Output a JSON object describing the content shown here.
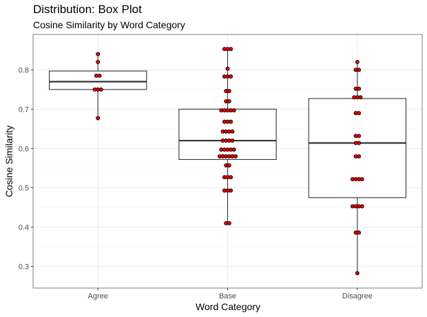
{
  "chart_data": {
    "type": "box",
    "title": "Distribution: Box Plot",
    "subtitle": "Cosine Similarity by Word Category",
    "xlabel": "Word Category",
    "ylabel": "Cosine Similarity",
    "ylim": [
      0.245,
      0.89
    ],
    "yticks": [
      0.3,
      0.4,
      0.5,
      0.6,
      0.7,
      0.8
    ],
    "ytick_labels": [
      "0.3",
      "0.4",
      "0.5",
      "0.6",
      "0.7",
      "0.8"
    ],
    "categories": [
      "Agree",
      "Base",
      "Disagree"
    ],
    "grid": true,
    "legend": "none",
    "colors": {
      "point_fill": "#e00000",
      "point_stroke": "#000000",
      "box_stroke": "#333333",
      "grid": "#ebebeb",
      "panel_border": "#7f7f7f"
    },
    "boxes": [
      {
        "category": "Agree",
        "whisker_low": 0.677,
        "q1": 0.75,
        "median": 0.77,
        "q3": 0.797,
        "whisker_high": 0.84
      },
      {
        "category": "Base",
        "whisker_low": 0.41,
        "q1": 0.572,
        "median": 0.62,
        "q3": 0.7,
        "whisker_high": 0.853
      },
      {
        "category": "Disagree",
        "whisker_low": 0.283,
        "q1": 0.475,
        "median": 0.614,
        "q3": 0.727,
        "whisker_high": 0.82
      }
    ],
    "points": [
      {
        "category": "Agree",
        "values": [
          0.84,
          0.82,
          0.785,
          0.785,
          0.75,
          0.75,
          0.75,
          0.677
        ]
      },
      {
        "category": "Base",
        "values": [
          0.853,
          0.853,
          0.853,
          0.803,
          0.783,
          0.783,
          0.783,
          0.746,
          0.746,
          0.72,
          0.72,
          0.697,
          0.697,
          0.697,
          0.697,
          0.697,
          0.668,
          0.668,
          0.668,
          0.643,
          0.643,
          0.643,
          0.643,
          0.62,
          0.62,
          0.62,
          0.62,
          0.597,
          0.597,
          0.597,
          0.597,
          0.597,
          0.58,
          0.58,
          0.58,
          0.58,
          0.58,
          0.58,
          0.557,
          0.557,
          0.527,
          0.527,
          0.527,
          0.493,
          0.493,
          0.493,
          0.41,
          0.41
        ]
      },
      {
        "category": "Disagree",
        "values": [
          0.82,
          0.8,
          0.8,
          0.752,
          0.752,
          0.73,
          0.73,
          0.73,
          0.69,
          0.69,
          0.632,
          0.632,
          0.614,
          0.614,
          0.58,
          0.58,
          0.522,
          0.522,
          0.522,
          0.522,
          0.453,
          0.453,
          0.453,
          0.453,
          0.386,
          0.386,
          0.283
        ]
      }
    ]
  }
}
